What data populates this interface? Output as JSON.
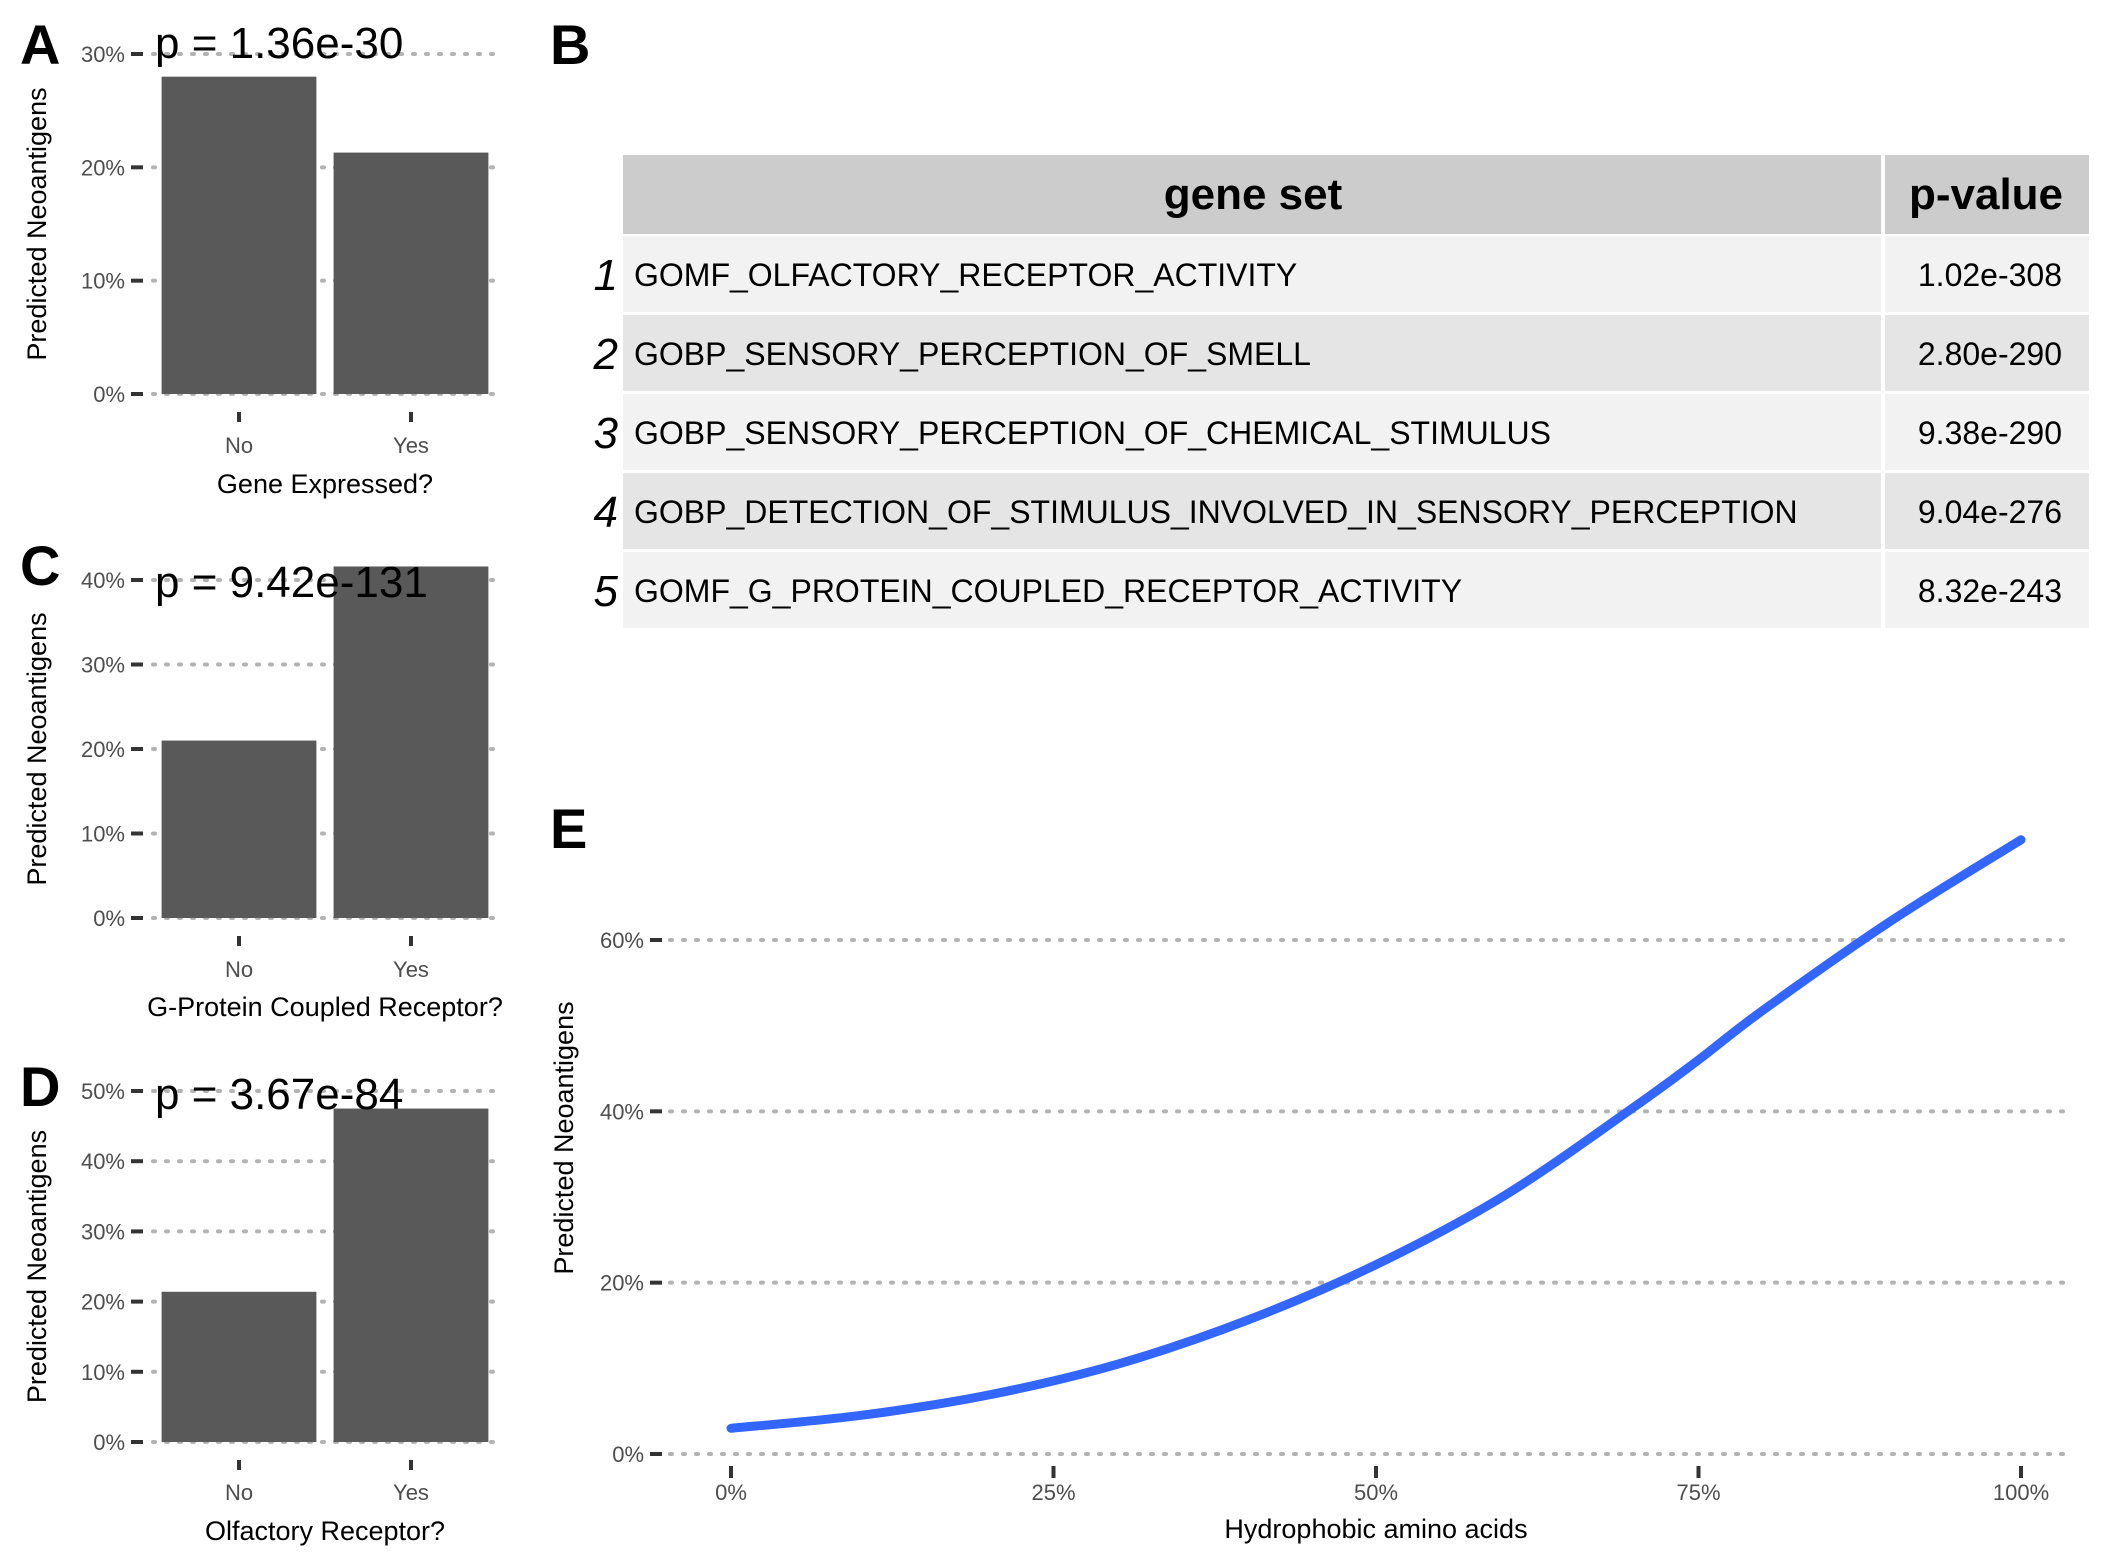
{
  "chart_data": [
    {
      "panel": "A",
      "type": "bar",
      "annotation": "p = 1.36e-30",
      "categories": [
        "No",
        "Yes"
      ],
      "values": [
        28,
        21.3
      ],
      "xlabel": "Gene Expressed?",
      "ylabel": "Predicted Neoantigens",
      "ylim": [
        0,
        30
      ],
      "yticks": [
        0,
        10,
        20,
        30
      ],
      "ytick_labels": [
        "0%",
        "10%",
        "20%",
        "30%"
      ],
      "grid": true
    },
    {
      "panel": "C",
      "type": "bar",
      "annotation": "p = 9.42e-131",
      "categories": [
        "No",
        "Yes"
      ],
      "values": [
        21,
        41.6
      ],
      "xlabel": "G-Protein Coupled Receptor?",
      "ylabel": "Predicted Neoantigens",
      "ylim": [
        0,
        40
      ],
      "yticks": [
        0,
        10,
        20,
        30,
        40
      ],
      "ytick_labels": [
        "0%",
        "10%",
        "20%",
        "30%",
        "40%"
      ],
      "grid": true
    },
    {
      "panel": "D",
      "type": "bar",
      "annotation": "p = 3.67e-84",
      "categories": [
        "No",
        "Yes"
      ],
      "values": [
        21.4,
        47.5
      ],
      "xlabel": "Olfactory Receptor?",
      "ylabel": "Predicted Neoantigens",
      "ylim": [
        0,
        50
      ],
      "yticks": [
        0,
        10,
        20,
        30,
        40,
        50
      ],
      "ytick_labels": [
        "0%",
        "10%",
        "20%",
        "30%",
        "40%",
        "50%"
      ],
      "grid": true
    },
    {
      "panel": "E",
      "type": "line",
      "x": [
        0,
        10,
        20,
        30,
        40,
        50,
        60,
        70,
        75,
        80,
        90,
        100
      ],
      "series": [
        {
          "values": [
            3.0,
            4.5,
            6.9,
            10.5,
            15.6,
            22.1,
            30.2,
            40.5,
            46.0,
            51.8,
            62.3,
            71.7
          ],
          "color": "#3366ff"
        }
      ],
      "xlabel": "Hydrophobic amino acids",
      "ylabel": "Predicted Neoantigens",
      "xlim": [
        0,
        100
      ],
      "ylim": [
        0,
        60
      ],
      "xticks": [
        0,
        25,
        50,
        75,
        100
      ],
      "xtick_labels": [
        "0%",
        "25%",
        "50%",
        "75%",
        "100%"
      ],
      "yticks": [
        0,
        20,
        40,
        60
      ],
      "ytick_labels": [
        "0%",
        "20%",
        "40%",
        "60%"
      ],
      "grid": true
    },
    {
      "panel": "B",
      "type": "table",
      "columns": [
        "gene set",
        "p-value"
      ],
      "rows": [
        {
          "index": "1",
          "gene_set": "GOMF_OLFACTORY_RECEPTOR_ACTIVITY",
          "p_value": "1.02e-308"
        },
        {
          "index": "2",
          "gene_set": "GOBP_SENSORY_PERCEPTION_OF_SMELL",
          "p_value": "2.80e-290"
        },
        {
          "index": "3",
          "gene_set": "GOBP_SENSORY_PERCEPTION_OF_CHEMICAL_STIMULUS",
          "p_value": "9.38e-290"
        },
        {
          "index": "4",
          "gene_set": "GOBP_DETECTION_OF_STIMULUS_INVOLVED_IN_SENSORY_PERCEPTION",
          "p_value": "9.04e-276"
        },
        {
          "index": "5",
          "gene_set": "GOMF_G_PROTEIN_COUPLED_RECEPTOR_ACTIVITY",
          "p_value": "8.32e-243"
        }
      ]
    }
  ],
  "colors": {
    "bar": "#595959",
    "line": "#3366ff",
    "table_header": "#cccccc",
    "table_row_light": "#f2f2f2",
    "table_row_dark": "#e5e5e5"
  }
}
